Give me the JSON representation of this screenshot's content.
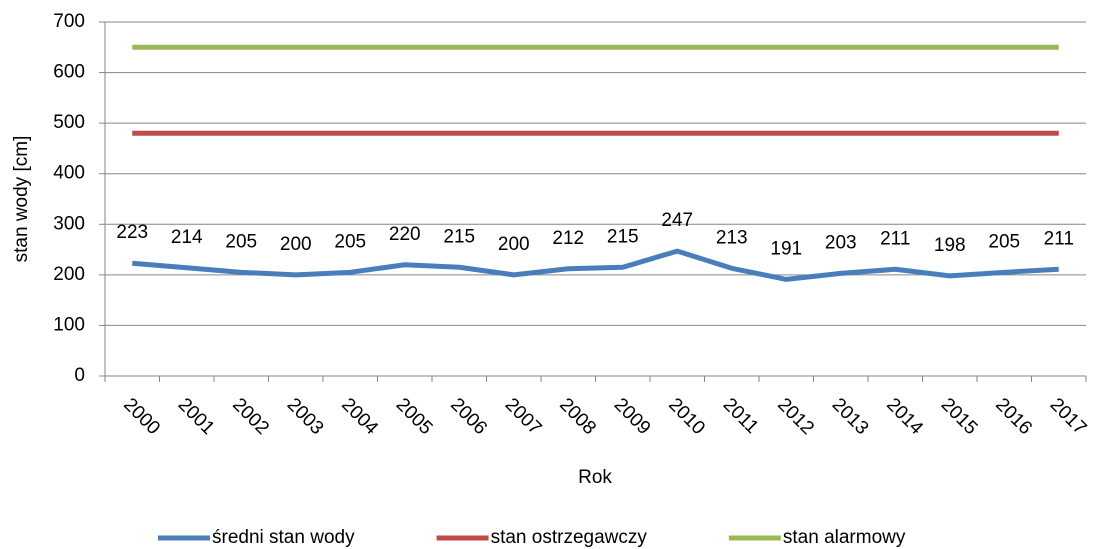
{
  "chart_data": {
    "type": "line",
    "x_label": "Rok",
    "y_label": "stan wody [cm]",
    "categories": [
      "2000",
      "2001",
      "2002",
      "2003",
      "2004",
      "2005",
      "2006",
      "2007",
      "2008",
      "2009",
      "2010",
      "2011",
      "2012",
      "2013",
      "2014",
      "2015",
      "2016",
      "2017"
    ],
    "series": [
      {
        "name": "średni stan wody",
        "color": "#4a7ebb",
        "data_labels": true,
        "values": [
          223,
          214,
          205,
          200,
          205,
          220,
          215,
          200,
          212,
          215,
          247,
          213,
          191,
          203,
          211,
          198,
          205,
          211
        ]
      },
      {
        "name": "stan ostrzegawczy",
        "color": "#be4b48",
        "data_labels": false,
        "values": [
          480,
          480,
          480,
          480,
          480,
          480,
          480,
          480,
          480,
          480,
          480,
          480,
          480,
          480,
          480,
          480,
          480,
          480
        ]
      },
      {
        "name": "stan alarmowy",
        "color": "#98b954",
        "data_labels": false,
        "values": [
          650,
          650,
          650,
          650,
          650,
          650,
          650,
          650,
          650,
          650,
          650,
          650,
          650,
          650,
          650,
          650,
          650,
          650
        ]
      }
    ],
    "ylim": [
      0,
      700
    ],
    "yticks": [
      0,
      100,
      200,
      300,
      400,
      500,
      600,
      700
    ],
    "grid": true,
    "legend": "bottom"
  }
}
